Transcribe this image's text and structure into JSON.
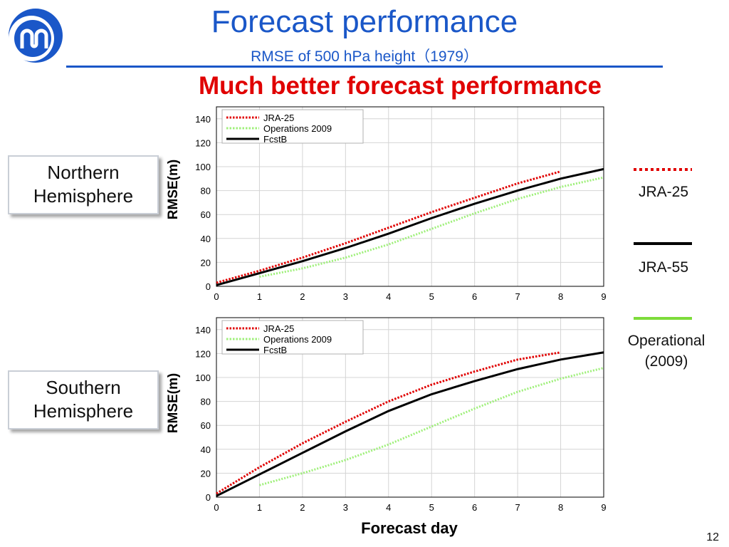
{
  "title": "Forecast performance",
  "subtitle": "RMSE of 500 hPa height（1979）",
  "headline": "Much better forecast performance",
  "page_number": "12",
  "xlabel": "Forecast day",
  "hemispheres": [
    {
      "line1": "Northern",
      "line2": "Hemisphere"
    },
    {
      "line1": "Southern",
      "line2": "Hemisphere"
    }
  ],
  "side_legend": [
    {
      "label": "JRA-25",
      "color": "#e00000",
      "style": "dotted"
    },
    {
      "label": "JRA-55",
      "color": "#000000",
      "style": "solid"
    },
    {
      "label": "Operational (2009)",
      "color": "#7ddc3a",
      "style": "solid"
    }
  ],
  "chart_data": [
    {
      "type": "line",
      "title": "",
      "xlabel": "",
      "ylabel": "RMSE(m)",
      "xlim": [
        0,
        9
      ],
      "ylim": [
        0,
        150
      ],
      "xticks": [
        0,
        1,
        2,
        3,
        4,
        5,
        6,
        7,
        8,
        9
      ],
      "yticks": [
        0,
        20,
        40,
        60,
        80,
        100,
        120,
        140
      ],
      "grid": true,
      "legend_position": "top-left",
      "series": [
        {
          "name": "JRA-25",
          "color": "#e00000",
          "style": "dotted",
          "x": [
            0,
            1,
            2,
            3,
            4,
            5,
            6,
            7,
            8
          ],
          "values": [
            3,
            13,
            24,
            36,
            49,
            62,
            74,
            86,
            96
          ]
        },
        {
          "name": "Operations 2009",
          "color": "#9ff07a",
          "style": "dotted",
          "x": [
            1,
            2,
            3,
            4,
            5,
            6,
            7,
            8,
            9
          ],
          "values": [
            8,
            15,
            24,
            35,
            48,
            61,
            73,
            83,
            91
          ]
        },
        {
          "name": "FcstB",
          "color": "#000000",
          "style": "solid",
          "x": [
            0,
            1,
            2,
            3,
            4,
            5,
            6,
            7,
            8,
            9
          ],
          "values": [
            1,
            11,
            21,
            32,
            44,
            57,
            69,
            80,
            90,
            98
          ]
        }
      ]
    },
    {
      "type": "line",
      "title": "",
      "xlabel": "Forecast day",
      "ylabel": "RMSE(m)",
      "xlim": [
        0,
        9
      ],
      "ylim": [
        0,
        150
      ],
      "xticks": [
        0,
        1,
        2,
        3,
        4,
        5,
        6,
        7,
        8,
        9
      ],
      "yticks": [
        0,
        20,
        40,
        60,
        80,
        100,
        120,
        140
      ],
      "grid": true,
      "legend_position": "top-left",
      "series": [
        {
          "name": "JRA-25",
          "color": "#e00000",
          "style": "dotted",
          "x": [
            0,
            1,
            2,
            3,
            4,
            5,
            6,
            7,
            8
          ],
          "values": [
            3,
            25,
            45,
            63,
            80,
            94,
            105,
            115,
            121
          ]
        },
        {
          "name": "Operations 2009",
          "color": "#9ff07a",
          "style": "dotted",
          "x": [
            1,
            2,
            3,
            4,
            5,
            6,
            7,
            8,
            9
          ],
          "values": [
            10,
            20,
            31,
            44,
            59,
            74,
            88,
            99,
            108
          ]
        },
        {
          "name": "FcstB",
          "color": "#000000",
          "style": "solid",
          "x": [
            0,
            1,
            2,
            3,
            4,
            5,
            6,
            7,
            8,
            9
          ],
          "values": [
            1,
            19,
            37,
            55,
            72,
            86,
            97,
            107,
            115,
            121
          ]
        }
      ]
    }
  ]
}
